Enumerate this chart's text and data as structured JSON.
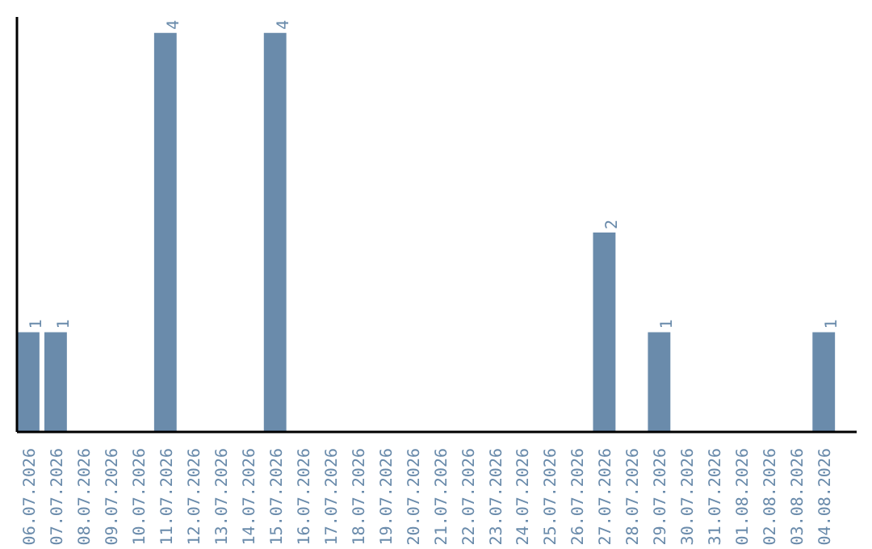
{
  "chart_data": {
    "type": "bar",
    "categories": [
      "06.07.2026",
      "07.07.2026",
      "08.07.2026",
      "09.07.2026",
      "10.07.2026",
      "11.07.2026",
      "12.07.2026",
      "13.07.2026",
      "14.07.2026",
      "15.07.2026",
      "16.07.2026",
      "17.07.2026",
      "18.07.2026",
      "19.07.2026",
      "20.07.2026",
      "21.07.2026",
      "22.07.2026",
      "23.07.2026",
      "24.07.2026",
      "25.07.2026",
      "26.07.2026",
      "27.07.2026",
      "28.07.2026",
      "29.07.2026",
      "30.07.2026",
      "31.07.2026",
      "01.08.2026",
      "02.08.2026",
      "03.08.2026",
      "04.08.2026"
    ],
    "values": [
      1,
      1,
      0,
      0,
      0,
      4,
      0,
      0,
      0,
      4,
      0,
      0,
      0,
      0,
      0,
      0,
      0,
      0,
      0,
      0,
      0,
      2,
      0,
      1,
      0,
      0,
      0,
      0,
      0,
      1
    ],
    "value_labels": [
      "1",
      "1",
      null,
      null,
      null,
      "4",
      null,
      null,
      null,
      "4",
      null,
      null,
      null,
      null,
      null,
      null,
      null,
      null,
      null,
      null,
      null,
      "2",
      null,
      "1",
      null,
      null,
      null,
      null,
      null,
      "1"
    ],
    "color": "#6a8bab",
    "ylim": [
      0,
      4.16
    ],
    "tick_labels": "x"
  }
}
